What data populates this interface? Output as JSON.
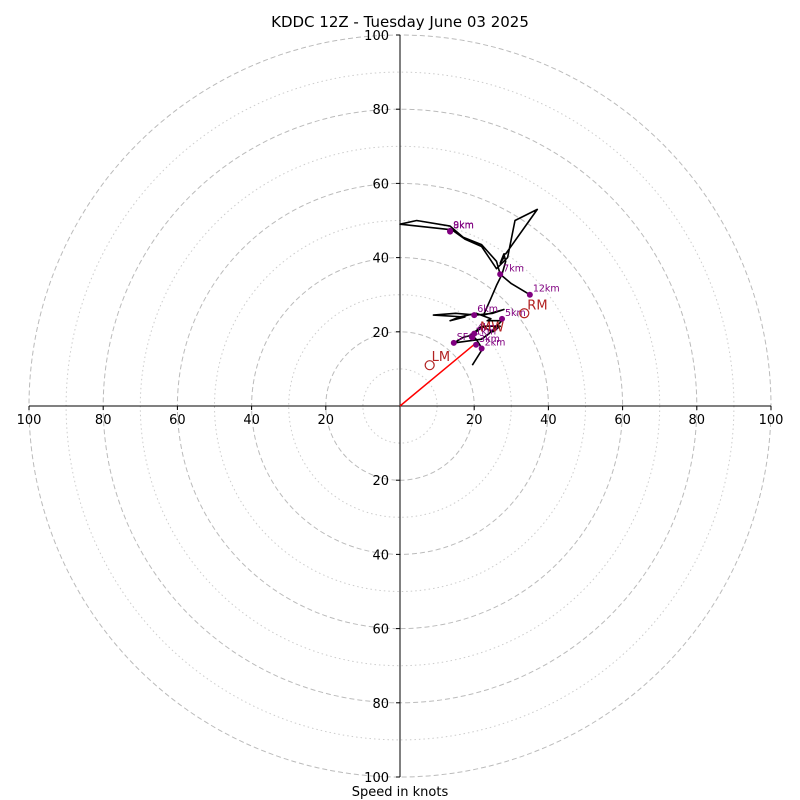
{
  "chart_data": {
    "type": "hodograph",
    "title": "KDDC 12Z - Tuesday June 03 2025",
    "xlabel": "Speed in knots",
    "range": [
      -100,
      100
    ],
    "ticks": {
      "top": [
        "100",
        "80",
        "60",
        "40",
        "20"
      ],
      "bottom": [
        "20",
        "40",
        "60",
        "80",
        "100"
      ],
      "left": [
        "100",
        "80",
        "60",
        "40",
        "20"
      ],
      "right": [
        "20",
        "40",
        "60",
        "80",
        "100"
      ]
    },
    "grid": {
      "dashed_rings": [
        20,
        40,
        60,
        80,
        100
      ],
      "dotted_rings": [
        10,
        30,
        50,
        70,
        90
      ],
      "color": "#bbbbbb"
    },
    "trace": {
      "color": "#000000",
      "points": [
        [
          19.5,
          11.0
        ],
        [
          22.0,
          15.0
        ],
        [
          21.5,
          16.5
        ],
        [
          20.5,
          18.0
        ],
        [
          19.5,
          19.0
        ],
        [
          20.5,
          20.0
        ],
        [
          22.5,
          21.5
        ],
        [
          27.0,
          21.5
        ],
        [
          25.0,
          20.0
        ],
        [
          22.0,
          21.5
        ],
        [
          19.0,
          19.0
        ],
        [
          17.0,
          18.5
        ],
        [
          14.5,
          17.0
        ],
        [
          22.0,
          18.0
        ],
        [
          24.0,
          19.5
        ],
        [
          26.0,
          21.5
        ],
        [
          27.5,
          23.0
        ],
        [
          23.5,
          23.0
        ],
        [
          24.5,
          23.5
        ],
        [
          20.5,
          25.0
        ],
        [
          16.0,
          24.0
        ],
        [
          13.5,
          23.0
        ],
        [
          17.5,
          24.0
        ],
        [
          9.0,
          24.5
        ],
        [
          15.0,
          25.0
        ],
        [
          20.5,
          24.5
        ],
        [
          25.0,
          25.0
        ],
        [
          28.0,
          26.0
        ],
        [
          22.5,
          24.5
        ],
        [
          24.5,
          29.0
        ],
        [
          26.0,
          32.5
        ],
        [
          27.5,
          35.5
        ],
        [
          28.5,
          39.0
        ],
        [
          28.0,
          41.0
        ],
        [
          27.0,
          38.5
        ],
        [
          28.0,
          40.0
        ],
        [
          28.0,
          41.0
        ],
        [
          28.5,
          41.0
        ],
        [
          37.0,
          53.0
        ],
        [
          31.0,
          50.0
        ],
        [
          29.0,
          40.0
        ],
        [
          26.0,
          37.0
        ],
        [
          22.0,
          43.0
        ],
        [
          17.5,
          45.0
        ],
        [
          14.0,
          47.5
        ],
        [
          0.0,
          49.0
        ],
        [
          4.5,
          50.0
        ],
        [
          13.5,
          48.5
        ],
        [
          17.0,
          45.5
        ],
        [
          22.0,
          43.5
        ],
        [
          26.0,
          39.0
        ],
        [
          27.0,
          35.5
        ],
        [
          30.0,
          33.0
        ],
        [
          35.0,
          30.0
        ]
      ]
    },
    "height_markers": [
      {
        "label": "2km",
        "u": 22.0,
        "v": 15.5
      },
      {
        "label": "3km",
        "u": 20.5,
        "v": 16.5
      },
      {
        "label": "1km",
        "u": 19.5,
        "v": 18.5
      },
      {
        "label": "4km",
        "u": 20.0,
        "v": 19.5
      },
      {
        "label": "5km",
        "u": 27.5,
        "v": 23.5
      },
      {
        "label": "6km",
        "u": 20.0,
        "v": 24.5
      },
      {
        "label": "7km",
        "u": 27.0,
        "v": 35.5
      },
      {
        "label": "8km",
        "u": 13.5,
        "v": 47.0
      },
      {
        "label": "9km",
        "u": 13.5,
        "v": 47.2
      },
      {
        "label": "12km",
        "u": 35.0,
        "v": 30.0
      },
      {
        "label": "SFC",
        "u": 14.5,
        "v": 17.0
      }
    ],
    "marker_color": "#800080",
    "storm_motion": [
      {
        "label": "RM",
        "u": 33.5,
        "v": 25.0
      },
      {
        "label": "LM",
        "u": 8.0,
        "v": 11.0
      },
      {
        "label": "MW",
        "u": 20.5,
        "v": 19.0
      }
    ],
    "storm_motion_color": "#b22222",
    "bunkers_vector": {
      "u": 20.5,
      "v": 17.0,
      "color": "#ff0000"
    }
  }
}
